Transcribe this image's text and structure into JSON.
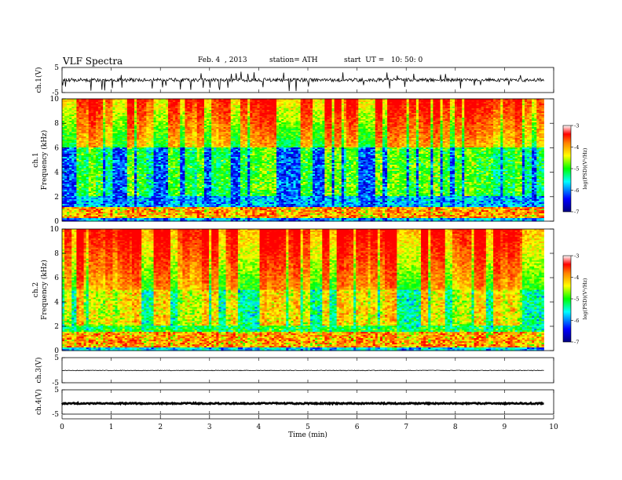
{
  "header": {
    "title": "VLF Spectra",
    "date": "Feb. 4  , 2013",
    "station": "station= ATH",
    "start": "start  UT =   10: 50: 0"
  },
  "chart_data": [
    {
      "type": "line",
      "panel": "ch1-waveform",
      "ylabel": "ch.1(V)",
      "ylim": [
        -5,
        5
      ],
      "yticks": [
        "5",
        "-5"
      ],
      "baseline_level": 0,
      "description_series": "continuous voltage trace with sharp downward spikes"
    },
    {
      "type": "heatmap",
      "panel": "ch1-spectrogram",
      "ylabel": "Frequency (kHz)",
      "channel_label": "ch.1",
      "ylim": [
        0,
        10
      ],
      "yticks": [
        "0",
        "2",
        "4",
        "6",
        "8",
        "10"
      ],
      "colorbar": {
        "label": "log(PSD)(V²/Hz)",
        "range": [
          -7,
          -3
        ],
        "ticks": [
          "-3",
          "-4",
          "-5",
          "-6",
          "-7"
        ]
      }
    },
    {
      "type": "heatmap",
      "panel": "ch2-spectrogram",
      "ylabel": "Frequency (kHz)",
      "channel_label": "ch.2",
      "ylim": [
        0,
        10
      ],
      "yticks": [
        "0",
        "2",
        "4",
        "6",
        "8",
        "10"
      ],
      "colorbar": {
        "label": "log(PSD)(V²/Hz)",
        "range": [
          -7,
          -3
        ],
        "ticks": [
          "-3",
          "-4",
          "-5",
          "-6",
          "-7"
        ]
      }
    },
    {
      "type": "line",
      "panel": "ch3-waveform",
      "ylabel": "ch.3(V)",
      "ylim": [
        -5,
        5
      ],
      "yticks": [
        "5",
        "-5"
      ],
      "baseline_level": -0.1
    },
    {
      "type": "line",
      "panel": "ch4-waveform",
      "ylabel": "ch.4(V)",
      "ylim": [
        -5,
        5
      ],
      "yticks": [
        "5",
        "-5"
      ],
      "baseline_level": -0.6
    }
  ],
  "xaxis": {
    "label": "Time  (min)",
    "xlim": [
      0,
      10
    ],
    "ticks": [
      "0",
      "1",
      "2",
      "3",
      "4",
      "5",
      "6",
      "7",
      "8",
      "9",
      "10"
    ],
    "data_end": 9.8
  },
  "colors": {
    "colormap": [
      "#000080",
      "#0000ff",
      "#00ffff",
      "#00ff00",
      "#ffff00",
      "#ff8000",
      "#ff0000",
      "#ffffff"
    ]
  }
}
